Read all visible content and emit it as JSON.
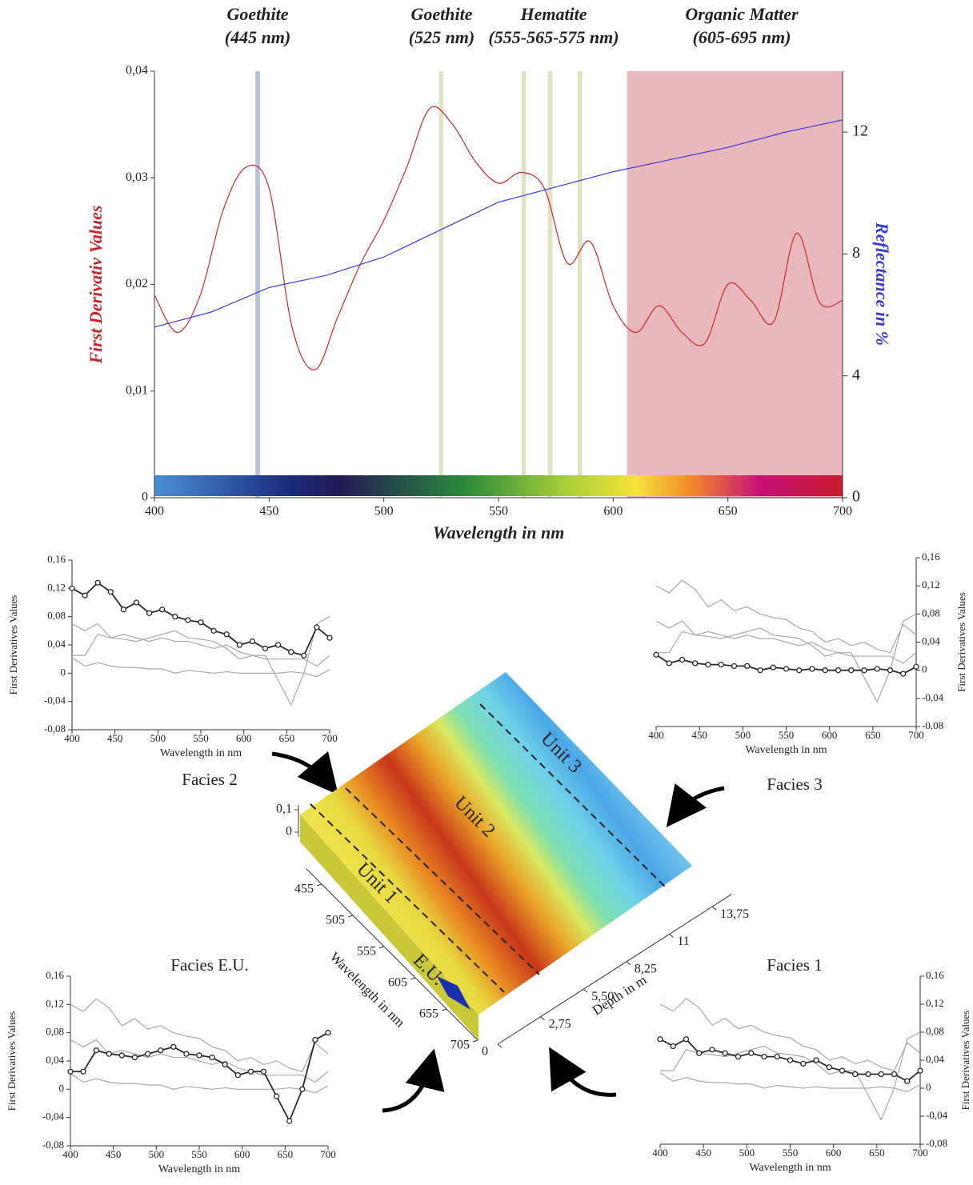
{
  "chart_data": [
    {
      "type": "line",
      "xlabel": "Wavelength in nm",
      "ylabel": "First Derivativ Values",
      "y2label": "Reflectance in %",
      "xlim": [
        400,
        700
      ],
      "xticks": [
        400,
        450,
        500,
        550,
        600,
        650,
        700
      ],
      "ylim": [
        0,
        0.04
      ],
      "yticks": [
        0,
        {
          "value": 0.01,
          "label": "0,01"
        },
        {
          "value": 0.02,
          "label": "0,02"
        },
        {
          "value": 0.03,
          "label": "0,03"
        },
        {
          "value": 0.04,
          "label": "0,04"
        }
      ],
      "y2lim": [
        0,
        14
      ],
      "y2ticks": [
        0,
        4,
        8,
        12
      ],
      "bands": [
        {
          "x": [
            444,
            446
          ],
          "color": "#b9c0da"
        },
        {
          "x": [
            524,
            526
          ],
          "color": "#dfe2c4"
        },
        {
          "x": [
            560,
            562
          ],
          "color": "#dfe2c4"
        },
        {
          "x": [
            571.5,
            573.5
          ],
          "color": "#dfe2c4"
        },
        {
          "x": [
            584.5,
            586.5
          ],
          "color": "#dfe2c4"
        },
        {
          "x": [
            606,
            700
          ],
          "color": "#e9b8bc"
        }
      ],
      "annotations": [
        {
          "lines": [
            "Goethite",
            "(445 nm)"
          ]
        },
        {
          "lines": [
            "Goethite",
            "(525 nm)"
          ]
        },
        {
          "lines": [
            "Hematite",
            "(555-565-575 nm)"
          ]
        },
        {
          "lines": [
            "Organic Matter",
            "(605-695 nm)"
          ]
        }
      ],
      "series": [
        {
          "color": "#c8282d",
          "smooth": true,
          "x": [
            400,
            410,
            420,
            430,
            440,
            450,
            460,
            470,
            480,
            490,
            500,
            510,
            520,
            530,
            540,
            550,
            560,
            570,
            580,
            590,
            600,
            610,
            620,
            630,
            640,
            650,
            660,
            670,
            680,
            690,
            700
          ],
          "values": [
            0.019,
            0.0155,
            0.019,
            0.027,
            0.031,
            0.029,
            0.016,
            0.012,
            0.017,
            0.022,
            0.026,
            0.031,
            0.0365,
            0.035,
            0.0315,
            0.0295,
            0.0305,
            0.029,
            0.022,
            0.024,
            0.018,
            0.0155,
            0.018,
            0.0155,
            0.0145,
            0.02,
            0.0185,
            0.0165,
            0.0248,
            0.0183,
            0.0185
          ]
        },
        {
          "color": "#3a3adc",
          "axis": "y2",
          "x": [
            400,
            425,
            450,
            475,
            500,
            525,
            550,
            575,
            600,
            625,
            650,
            675,
            700
          ],
          "values": [
            5.6,
            6.1,
            6.9,
            7.3,
            7.9,
            8.8,
            9.7,
            10.2,
            10.7,
            11.1,
            11.5,
            12.0,
            12.4
          ]
        }
      ]
    },
    {
      "type": "line",
      "title": "Facies 2",
      "xlabel": "Wavelength in nm",
      "ylabel": "First Derivatives Values",
      "y_axis_side": "left",
      "xlim": [
        400,
        700
      ],
      "xticks": [
        400,
        450,
        500,
        550,
        600,
        650,
        700
      ],
      "ylim": [
        -0.08,
        0.16
      ],
      "yticks": [
        {
          "value": -0.08,
          "label": "-0,08"
        },
        {
          "value": -0.04,
          "label": "-0,04"
        },
        0,
        {
          "value": 0.04,
          "label": "0,04"
        },
        {
          "value": 0.08,
          "label": "0,08"
        },
        {
          "value": 0.12,
          "label": "0,12"
        },
        {
          "value": 0.16,
          "label": "0,16"
        }
      ],
      "x": [
        400,
        415,
        430,
        445,
        460,
        475,
        490,
        505,
        520,
        535,
        550,
        565,
        580,
        595,
        610,
        625,
        640,
        655,
        670,
        685,
        700
      ],
      "series": [
        {
          "color": "#a8a8a8",
          "values": [
            0.022,
            0.01,
            0.015,
            0.01,
            0.008,
            0.008,
            0.006,
            0.006,
            0.0,
            0.004,
            0.002,
            0.0,
            0.002,
            0.0,
            0.0,
            0.0,
            0.0,
            0.002,
            0.0,
            -0.005,
            0.005
          ]
        },
        {
          "color": "#a8a8a8",
          "values": [
            0.025,
            0.025,
            0.055,
            0.05,
            0.048,
            0.045,
            0.05,
            0.055,
            0.06,
            0.05,
            0.048,
            0.045,
            0.035,
            0.02,
            0.025,
            0.025,
            -0.01,
            -0.045,
            0.0,
            0.07,
            0.08
          ]
        },
        {
          "color": "#a8a8a8",
          "values": [
            0.07,
            0.06,
            0.07,
            0.05,
            0.055,
            0.05,
            0.045,
            0.05,
            0.045,
            0.045,
            0.04,
            0.035,
            0.04,
            0.03,
            0.025,
            0.02,
            0.02,
            0.02,
            0.02,
            0.01,
            0.025
          ]
        },
        {
          "color": "#2a2a2a",
          "markers": true,
          "values": [
            0.12,
            0.11,
            0.128,
            0.115,
            0.09,
            0.1,
            0.085,
            0.09,
            0.08,
            0.075,
            0.072,
            0.06,
            0.055,
            0.04,
            0.045,
            0.035,
            0.04,
            0.03,
            0.025,
            0.065,
            0.05
          ]
        }
      ]
    },
    {
      "type": "line",
      "title": "Facies 3",
      "xlabel": "Wavelength in nm",
      "ylabel": "First Derivatives Values",
      "y_axis_side": "right",
      "xlim": [
        400,
        700
      ],
      "xticks": [
        400,
        450,
        500,
        550,
        600,
        650,
        700
      ],
      "ylim": [
        -0.08,
        0.16
      ],
      "yticks": [
        {
          "value": -0.08,
          "label": "-0,08"
        },
        {
          "value": -0.04,
          "label": "-0,04"
        },
        0,
        {
          "value": 0.04,
          "label": "0,04"
        },
        {
          "value": 0.08,
          "label": "0,08"
        },
        {
          "value": 0.12,
          "label": "0,12"
        },
        {
          "value": 0.16,
          "label": "0,16"
        }
      ],
      "x": [
        400,
        415,
        430,
        445,
        460,
        475,
        490,
        505,
        520,
        535,
        550,
        565,
        580,
        595,
        610,
        625,
        640,
        655,
        670,
        685,
        700
      ],
      "series": [
        {
          "color": "#a8a8a8",
          "values": [
            0.12,
            0.11,
            0.128,
            0.115,
            0.09,
            0.1,
            0.085,
            0.09,
            0.08,
            0.075,
            0.072,
            0.06,
            0.055,
            0.04,
            0.045,
            0.035,
            0.04,
            0.03,
            0.025,
            0.065,
            0.05
          ]
        },
        {
          "color": "#a8a8a8",
          "values": [
            0.025,
            0.025,
            0.055,
            0.05,
            0.048,
            0.045,
            0.05,
            0.055,
            0.06,
            0.05,
            0.048,
            0.045,
            0.035,
            0.02,
            0.025,
            0.025,
            -0.01,
            -0.045,
            0.0,
            0.07,
            0.08
          ]
        },
        {
          "color": "#a8a8a8",
          "values": [
            0.07,
            0.06,
            0.07,
            0.05,
            0.055,
            0.05,
            0.045,
            0.05,
            0.045,
            0.045,
            0.04,
            0.035,
            0.04,
            0.03,
            0.025,
            0.02,
            0.02,
            0.02,
            0.02,
            0.01,
            0.025
          ]
        },
        {
          "color": "#2a2a2a",
          "markers": true,
          "values": [
            0.022,
            0.01,
            0.015,
            0.01,
            0.008,
            0.008,
            0.006,
            0.006,
            0.0,
            0.004,
            0.002,
            0.0,
            0.002,
            0.0,
            0.0,
            0.0,
            0.0,
            0.002,
            0.0,
            -0.005,
            0.005
          ]
        }
      ]
    },
    {
      "type": "line",
      "title": "Facies E.U.",
      "xlabel": "Wavelength in nm",
      "ylabel": "First Derivatives Values",
      "y_axis_side": "left",
      "xlim": [
        400,
        700
      ],
      "xticks": [
        400,
        450,
        500,
        550,
        600,
        650,
        700
      ],
      "ylim": [
        -0.08,
        0.16
      ],
      "yticks": [
        {
          "value": -0.08,
          "label": "-0,08"
        },
        {
          "value": -0.04,
          "label": "-0,04"
        },
        0,
        {
          "value": 0.04,
          "label": "0,04"
        },
        {
          "value": 0.08,
          "label": "0,08"
        },
        {
          "value": 0.12,
          "label": "0,12"
        },
        {
          "value": 0.16,
          "label": "0,16"
        }
      ],
      "x": [
        400,
        415,
        430,
        445,
        460,
        475,
        490,
        505,
        520,
        535,
        550,
        565,
        580,
        595,
        610,
        625,
        640,
        655,
        670,
        685,
        700
      ],
      "series": [
        {
          "color": "#a8a8a8",
          "values": [
            0.12,
            0.11,
            0.128,
            0.115,
            0.09,
            0.1,
            0.085,
            0.09,
            0.08,
            0.075,
            0.072,
            0.06,
            0.055,
            0.04,
            0.045,
            0.035,
            0.04,
            0.03,
            0.025,
            0.065,
            0.05
          ]
        },
        {
          "color": "#a8a8a8",
          "values": [
            0.022,
            0.01,
            0.015,
            0.01,
            0.008,
            0.008,
            0.006,
            0.006,
            0.0,
            0.004,
            0.002,
            0.0,
            0.002,
            0.0,
            0.0,
            0.0,
            0.0,
            0.002,
            0.0,
            -0.005,
            0.005
          ]
        },
        {
          "color": "#a8a8a8",
          "values": [
            0.07,
            0.06,
            0.07,
            0.05,
            0.055,
            0.05,
            0.045,
            0.05,
            0.045,
            0.045,
            0.04,
            0.035,
            0.04,
            0.03,
            0.025,
            0.02,
            0.02,
            0.02,
            0.02,
            0.01,
            0.025
          ]
        },
        {
          "color": "#2a2a2a",
          "markers": true,
          "values": [
            0.025,
            0.025,
            0.055,
            0.05,
            0.048,
            0.045,
            0.05,
            0.055,
            0.06,
            0.05,
            0.048,
            0.045,
            0.035,
            0.02,
            0.025,
            0.025,
            -0.01,
            -0.045,
            0.0,
            0.07,
            0.08
          ]
        }
      ]
    },
    {
      "type": "line",
      "title": "Facies 1",
      "xlabel": "Wavelength in nm",
      "ylabel": "First Derivatives Values",
      "y_axis_side": "right",
      "xlim": [
        400,
        700
      ],
      "xticks": [
        400,
        450,
        500,
        550,
        600,
        650,
        700
      ],
      "ylim": [
        -0.08,
        0.16
      ],
      "yticks": [
        {
          "value": -0.08,
          "label": "-0,08"
        },
        {
          "value": -0.04,
          "label": "-0,04"
        },
        0,
        {
          "value": 0.04,
          "label": "0,04"
        },
        {
          "value": 0.08,
          "label": "0,08"
        },
        {
          "value": 0.12,
          "label": "0,12"
        },
        {
          "value": 0.16,
          "label": "0,16"
        }
      ],
      "x": [
        400,
        415,
        430,
        445,
        460,
        475,
        490,
        505,
        520,
        535,
        550,
        565,
        580,
        595,
        610,
        625,
        640,
        655,
        670,
        685,
        700
      ],
      "series": [
        {
          "color": "#a8a8a8",
          "values": [
            0.12,
            0.11,
            0.128,
            0.115,
            0.09,
            0.1,
            0.085,
            0.09,
            0.08,
            0.075,
            0.072,
            0.06,
            0.055,
            0.04,
            0.045,
            0.035,
            0.04,
            0.03,
            0.025,
            0.065,
            0.05
          ]
        },
        {
          "color": "#a8a8a8",
          "values": [
            0.022,
            0.01,
            0.015,
            0.01,
            0.008,
            0.008,
            0.006,
            0.006,
            0.0,
            0.004,
            0.002,
            0.0,
            0.002,
            0.0,
            0.0,
            0.0,
            0.0,
            0.002,
            0.0,
            -0.005,
            0.005
          ]
        },
        {
          "color": "#a8a8a8",
          "values": [
            0.025,
            0.025,
            0.055,
            0.05,
            0.048,
            0.045,
            0.05,
            0.055,
            0.06,
            0.05,
            0.048,
            0.045,
            0.035,
            0.02,
            0.025,
            0.025,
            -0.01,
            -0.045,
            0.0,
            0.07,
            0.08
          ]
        },
        {
          "color": "#2a2a2a",
          "markers": true,
          "values": [
            0.07,
            0.06,
            0.07,
            0.05,
            0.055,
            0.05,
            0.045,
            0.05,
            0.045,
            0.045,
            0.04,
            0.035,
            0.04,
            0.03,
            0.025,
            0.02,
            0.02,
            0.02,
            0.02,
            0.01,
            0.025
          ]
        }
      ]
    },
    {
      "type": "surface",
      "xlabel": "Wavelength in nm",
      "ylabel": "Depth in m",
      "xticks": [
        455,
        505,
        555,
        605,
        655,
        705
      ],
      "yticks": [
        0,
        {
          "value": 2.75,
          "label": "2,75"
        },
        {
          "value": 5.5,
          "label": "5,50"
        },
        {
          "value": 8.25,
          "label": "8,25"
        },
        11,
        {
          "value": 13.75,
          "label": "13,75"
        }
      ],
      "zticks": [
        0,
        {
          "value": 0.1,
          "label": "0,1"
        }
      ],
      "annotations": [
        "Unit 1",
        "Unit 2",
        "Unit 3",
        "E.U."
      ]
    }
  ]
}
